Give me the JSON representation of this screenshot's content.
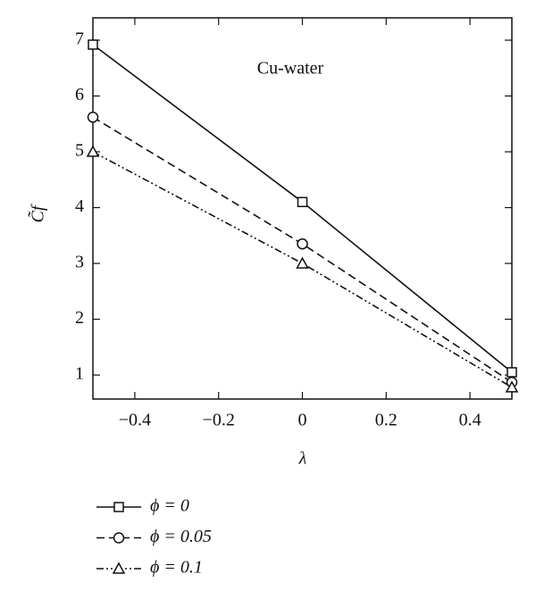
{
  "chart_data": {
    "type": "line",
    "annotation": "Cu-water",
    "xlabel": "λ",
    "ylabel": "C̃f",
    "x": [
      -0.5,
      0,
      0.5
    ],
    "series": [
      {
        "name": "ϕ = 0",
        "color": "#111111",
        "linestyle": "solid",
        "marker": "square",
        "values": [
          6.92,
          4.1,
          1.05
        ]
      },
      {
        "name": "ϕ = 0.05",
        "color": "#111111",
        "linestyle": "dashed",
        "marker": "circle",
        "values": [
          5.62,
          3.35,
          0.87
        ]
      },
      {
        "name": "ϕ = 0.1",
        "color": "#111111",
        "linestyle": "dashdotdot",
        "marker": "triangle",
        "values": [
          5.0,
          3.0,
          0.78
        ]
      }
    ],
    "xlim": [
      -0.5,
      0.5
    ],
    "ylim": [
      0.57,
      7.4
    ],
    "xticks": [
      {
        "value": -0.4,
        "label": "−0.4"
      },
      {
        "value": -0.2,
        "label": "−0.2"
      },
      0,
      0.2,
      0.4
    ],
    "yticks": [
      1,
      2,
      3,
      4,
      5,
      6,
      7
    ],
    "grid": false
  }
}
